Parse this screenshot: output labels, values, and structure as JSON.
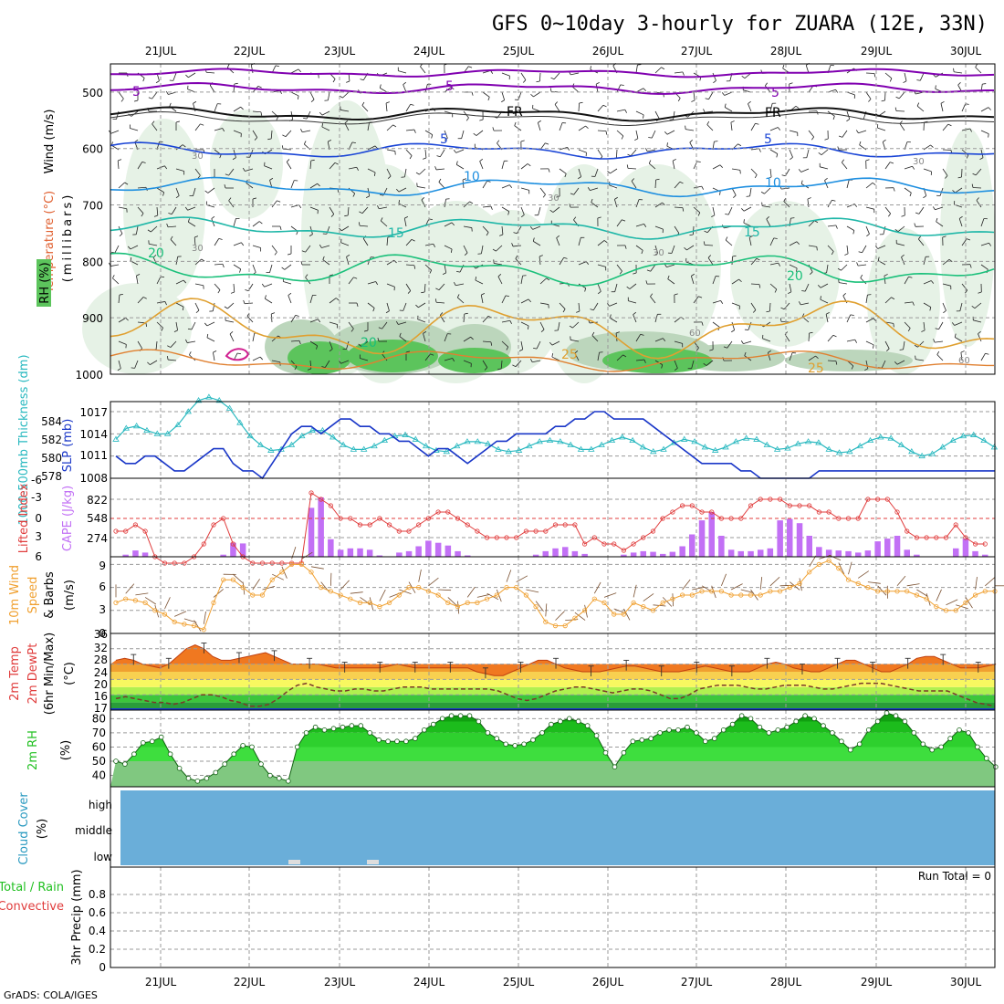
{
  "title": "GFS 0~10day 3-hourly for ZUARA (12E, 33N)",
  "credit": "GrADS: COLA/IGES",
  "dates": [
    "21JUL",
    "22JUL",
    "23JUL",
    "24JUL",
    "25JUL",
    "26JUL",
    "27JUL",
    "28JUL",
    "29JUL",
    "30JUL"
  ],
  "colors": {
    "wind_rh_green_light": "#e3f1e3",
    "rh_dark": "#5cc45c",
    "temp_purple": "#8000b0",
    "temp_blue": "#1a45d6",
    "temp_lightblue": "#1e8fe0",
    "temp_teal": "#1fb7a8",
    "temp_green": "#1ac07a",
    "temp_orange": "#e0a030",
    "slp": "#1a37c8",
    "thickness": "#2ab9c0",
    "lifted": "#e03c3c",
    "cape": "#c270f5",
    "wind10": "#f0a030",
    "cloud": "#6aaed9",
    "rh2m": "#22c022"
  },
  "panels": {
    "upper": {
      "ylabel_wind": "Wind (m/s)",
      "ylabel_temp": "Temperature (°C)",
      "ylabel_rh": "RH (%)",
      "ylabel_mb": "(millibars)",
      "levels": [
        500,
        600,
        700,
        800,
        900,
        1000
      ],
      "contour_labels": [
        "5",
        "5",
        "5",
        "FR",
        "FR",
        "5",
        "5",
        "10",
        "10",
        "15",
        "15",
        "20",
        "20",
        "20",
        "25",
        "25",
        "30",
        "30",
        "30",
        "30",
        "30",
        "60",
        "60"
      ]
    },
    "slp": {
      "ylabel_thickness": "1000-500mb Thickness (dm)",
      "ylabel_slp": "SLP (mb)",
      "thickness_ticks": [
        "584",
        "582",
        "580",
        "578"
      ],
      "slp_ticks": [
        "1017",
        "1014",
        "1011",
        "1008"
      ]
    },
    "li_cape": {
      "ylabel_li": "Lifted Index",
      "ylabel_cape": "CAPE (J/kg)",
      "li_ticks": [
        "-6",
        "-3",
        "0",
        "3",
        "6"
      ],
      "cape_ticks": [
        "822",
        "548",
        "274"
      ]
    },
    "wind10": {
      "ylabel": "10m Wind",
      "ylabel2": "Speed",
      "ylabel3": "& Barbs",
      "unit": "(m/s)",
      "ticks": [
        "9",
        "6",
        "3",
        "0"
      ]
    },
    "temp2m": {
      "ylabel": "2m Temp",
      "ylabel2": "2m DewPt",
      "ylabel3": "(6hr Min/Max)",
      "unit": "(°C)",
      "ticks": [
        "36",
        "32",
        "28",
        "24",
        "20",
        "16",
        "17"
      ]
    },
    "rh2m": {
      "ylabel": "2m RH",
      "unit": "(%)",
      "ticks": [
        "80",
        "70",
        "60",
        "50",
        "40"
      ]
    },
    "cloud": {
      "ylabel": "Cloud Cover",
      "unit": "(%)",
      "levels": [
        "high",
        "middle",
        "low"
      ]
    },
    "precip": {
      "ylabel_total": "Total / Rain",
      "ylabel_conv": "Convective",
      "ylabel": "3hr Precip (mm)",
      "run_total": "Run Total = 0",
      "ticks": [
        "0.8",
        "0.6",
        "0.4",
        "0.2",
        "0"
      ]
    }
  },
  "chart_data": [
    {
      "type": "line",
      "title": "SLP (mb)",
      "x_unit": "3-hourly steps from 20JUL 12Z",
      "series": [
        {
          "name": "SLP (mb)",
          "values": [
            1011,
            1010,
            1010,
            1011,
            1011,
            1010,
            1009,
            1009,
            1010,
            1011,
            1012,
            1012,
            1010,
            1009,
            1009,
            1008,
            1010,
            1012,
            1014,
            1015,
            1015,
            1014,
            1015,
            1016,
            1016,
            1015,
            1015,
            1014,
            1014,
            1013,
            1013,
            1012,
            1011,
            1012,
            1012,
            1011,
            1010,
            1011,
            1012,
            1013,
            1013,
            1014,
            1014,
            1014,
            1014,
            1015,
            1015,
            1016,
            1016,
            1017,
            1017,
            1016,
            1016,
            1016,
            1016,
            1015,
            1014,
            1013,
            1012,
            1011,
            1010,
            1010,
            1010,
            1010,
            1009,
            1009,
            1008,
            1008,
            1008,
            1008,
            1008,
            1008,
            1009,
            1009,
            1009,
            1009,
            1009,
            1009,
            1009,
            1009,
            1009,
            1009,
            1009,
            1009,
            1009,
            1009,
            1009,
            1009,
            1009,
            1009,
            1009,
            1009,
            1009,
            1009,
            1009,
            1009,
            1009,
            1009,
            1009,
            1009,
            1009,
            1009,
            1009,
            1009,
            1009,
            1009,
            1009,
            1009,
            1009,
            1009,
            1009,
            1009,
            1009,
            1009,
            1009,
            1009,
            1009,
            1009,
            1009,
            1009,
            1009,
            1009,
            1009,
            1009,
            1009,
            1009,
            1009,
            1009,
            1009,
            1009,
            1009,
            1009,
            1009,
            1009,
            1009,
            1009,
            1009,
            1009,
            1009,
            1009,
            1009,
            1009,
            1009,
            1009,
            1009,
            1009,
            1009,
            1009,
            1009,
            1009,
            1009,
            1009,
            1009,
            1009,
            1009,
            1009,
            1009,
            1009,
            1009,
            1009,
            1009,
            1009,
            1009,
            1009,
            1009,
            1009,
            1009,
            1009,
            1009,
            1009,
            1009,
            1009,
            1009,
            1009,
            1009,
            1009,
            1009,
            1009,
            1009,
            1009,
            1009,
            1009,
            1009,
            1009,
            1009,
            1009,
            1009,
            1009,
            1009,
            1009,
            1009,
            1009,
            1009,
            1009,
            1009,
            1009,
            1009,
            1009,
            1009,
            1009,
            1009,
            1009,
            1009,
            1009,
            1009,
            1009,
            1009,
            1009,
            1009,
            1009,
            1009,
            1009,
            1009,
            1009,
            1009,
            1009,
            1009,
            1009,
            1009
          ]
        },
        {
          "name": "1000-500mb Thickness (dm)",
          "values": [
            581.5,
            582.5,
            582.7,
            582.3,
            582.0,
            582.0,
            582.8,
            584.0,
            585.0,
            585.3,
            585.0,
            584.3,
            583.0,
            581.8,
            581.0,
            580.5,
            580.6,
            581.0,
            581.8,
            582.3,
            582.3,
            581.7,
            581.0,
            580.6,
            580.6,
            580.9,
            581.4,
            581.8,
            581.9,
            581.5,
            580.9,
            580.5,
            580.4,
            580.9,
            581.3,
            581.3,
            581.1,
            580.6,
            580.4,
            580.5,
            580.9,
            581.3,
            581.4,
            581.3,
            581.0,
            580.6,
            580.6,
            581.0,
            581.4,
            581.7,
            581.4,
            580.8,
            580.4,
            580.6,
            581.2,
            581.5,
            581.3,
            580.8,
            580.5,
            580.8,
            581.3,
            581.6,
            581.5,
            581.0,
            580.6,
            580.7,
            581.1,
            581.3,
            581.2,
            580.6,
            580.3,
            580.4,
            580.9,
            581.4,
            581.7,
            581.6,
            581.0,
            580.4,
            580.0,
            580.2,
            580.8,
            581.4,
            581.8,
            581.9,
            581.4,
            580.8
          ]
        }
      ]
    },
    {
      "type": "bar",
      "title": "CAPE (J/kg)",
      "series": [
        {
          "name": "CAPE (J/kg)",
          "values": [
            0,
            30,
            90,
            60,
            0,
            0,
            0,
            0,
            0,
            0,
            0,
            30,
            200,
            190,
            0,
            0,
            0,
            0,
            0,
            0,
            700,
            850,
            250,
            100,
            120,
            120,
            100,
            20,
            0,
            60,
            80,
            150,
            230,
            200,
            160,
            80,
            20,
            0,
            0,
            0,
            0,
            0,
            0,
            30,
            80,
            120,
            140,
            80,
            40,
            0,
            0,
            0,
            30,
            60,
            80,
            70,
            40,
            70,
            150,
            320,
            520,
            640,
            300,
            100,
            80,
            80,
            100,
            120,
            520,
            540,
            480,
            300,
            140,
            100,
            90,
            80,
            60,
            90,
            220,
            260,
            300,
            100,
            30,
            0,
            0,
            0,
            120,
            260,
            80,
            30,
            0
          ]
        },
        {
          "name": "Lifted Index",
          "values": [
            2,
            2,
            1,
            2,
            6,
            7,
            7,
            7,
            6,
            4,
            1,
            0,
            4,
            6,
            7,
            7,
            7,
            7,
            7,
            7,
            -4,
            -3,
            -2,
            0,
            0,
            1,
            1,
            0,
            1,
            2,
            2,
            1,
            0,
            -1,
            -1,
            0,
            1,
            2,
            3,
            3,
            3,
            3,
            2,
            2,
            2,
            1,
            1,
            1,
            4,
            3,
            4,
            4,
            5,
            4,
            3,
            2,
            0,
            -1,
            -2,
            -2,
            -1,
            -1,
            0,
            0,
            0,
            -2,
            -3,
            -3,
            -3,
            -2,
            -2,
            -2,
            -1,
            -1,
            0,
            0,
            0,
            -3,
            -3,
            -3,
            -1,
            2,
            3,
            3,
            3,
            3,
            1,
            3,
            4,
            4
          ]
        }
      ]
    },
    {
      "type": "line",
      "title": "10m Wind Speed & Barbs (m/s)",
      "series": [
        {
          "name": "10m Wind Speed (m/s)",
          "values": [
            4,
            4.5,
            4.3,
            4,
            3,
            2.5,
            1.5,
            1.2,
            1,
            0.5,
            4,
            7,
            7,
            6,
            5,
            5,
            7,
            8,
            9,
            9,
            8,
            6,
            5.5,
            5,
            4.5,
            4,
            4,
            3.5,
            4,
            5,
            6,
            6,
            5.5,
            5,
            4,
            3.5,
            4,
            4,
            4.5,
            5,
            6,
            6,
            5,
            3.5,
            1.5,
            1,
            1,
            2,
            3,
            4.5,
            4,
            2.5,
            2.5,
            4,
            3.5,
            3,
            4,
            4.5,
            5,
            5,
            5.5,
            5.5,
            5.5,
            5,
            5,
            5,
            5,
            5.5,
            5.5,
            6,
            6.5,
            8,
            9,
            9.5,
            8.5,
            7,
            6.5,
            6,
            5.5,
            5.5,
            5.5,
            5.5,
            5,
            4.5,
            3.5,
            3,
            3,
            4,
            5,
            5.5,
            5.5,
            4,
            3,
            2.5,
            2
          ]
        }
      ]
    },
    {
      "type": "area",
      "title": "2m Temp / 2m DewPt (°C)",
      "series": [
        {
          "name": "2m Temp (°C)",
          "values": [
            29,
            29.5,
            29,
            28,
            27.5,
            27,
            28,
            30,
            32,
            33,
            32,
            30,
            29,
            29,
            29.5,
            30,
            30.5,
            31,
            30,
            29,
            28,
            28,
            28,
            28,
            27.5,
            27,
            27,
            27,
            27,
            27,
            27,
            27.5,
            28,
            27.5,
            27,
            27,
            27,
            27,
            27,
            27,
            27,
            26,
            25.5,
            25,
            25,
            26,
            27,
            28,
            29,
            29,
            28,
            27,
            26.5,
            26,
            26,
            26,
            26.5,
            27,
            27.5,
            27.5,
            27,
            26.5,
            26,
            26,
            26,
            26.5,
            27,
            27.5,
            27,
            26.5,
            26,
            26,
            26,
            27,
            28,
            28.5,
            28,
            27,
            26.5,
            26,
            26,
            27,
            28,
            29,
            29,
            28,
            27,
            26,
            26,
            27,
            28,
            29.5,
            30,
            30,
            29,
            28,
            27,
            27,
            27,
            27.5,
            28
          ]
        },
        {
          "name": "2m DewPt (°C)",
          "values": [
            19,
            19.5,
            19,
            18.5,
            18,
            18,
            17.5,
            18,
            19,
            20,
            20,
            19.5,
            18.5,
            18,
            17,
            17,
            17.5,
            19,
            21,
            22.5,
            23,
            22,
            21.5,
            21,
            21,
            21.5,
            21.5,
            21,
            21,
            21.5,
            22,
            22,
            22,
            21.5,
            21.5,
            21.5,
            21.5,
            21.5,
            21.5,
            21.5,
            21,
            20,
            19,
            18.5,
            19,
            20,
            21,
            21.5,
            22,
            22,
            21.5,
            21,
            20.5,
            21,
            21.5,
            21.5,
            21,
            20,
            19,
            19,
            20,
            21.5,
            22,
            22.5,
            22.5,
            22.5,
            22,
            21.5,
            21.5,
            22,
            22.5,
            22.5,
            22.5,
            22,
            21.5,
            21.5,
            22,
            22.5,
            23,
            23,
            23,
            22.5,
            22,
            21.5,
            21,
            21,
            21,
            21,
            20,
            19,
            18,
            17.5,
            17
          ]
        }
      ]
    },
    {
      "type": "area",
      "title": "2m RH (%)",
      "series": [
        {
          "name": "2m RH (%)",
          "values": [
            50,
            48,
            55,
            63,
            64,
            67,
            55,
            45,
            38,
            36,
            38,
            42,
            48,
            55,
            61,
            60,
            48,
            40,
            38,
            36,
            60,
            70,
            74,
            72,
            73,
            74,
            75,
            75,
            70,
            65,
            64,
            64,
            64,
            66,
            72,
            76,
            80,
            82,
            82,
            82,
            78,
            70,
            66,
            62,
            61,
            62,
            65,
            70,
            76,
            78,
            80,
            78,
            75,
            68,
            56,
            46,
            56,
            64,
            65,
            66,
            70,
            72,
            72,
            74,
            70,
            64,
            66,
            72,
            76,
            82,
            80,
            74,
            70,
            72,
            74,
            78,
            82,
            80,
            75,
            70,
            64,
            58,
            62,
            72,
            78,
            84,
            82,
            78,
            70,
            62,
            58,
            60,
            66,
            72,
            70,
            60,
            52,
            46
          ]
        }
      ]
    }
  ]
}
